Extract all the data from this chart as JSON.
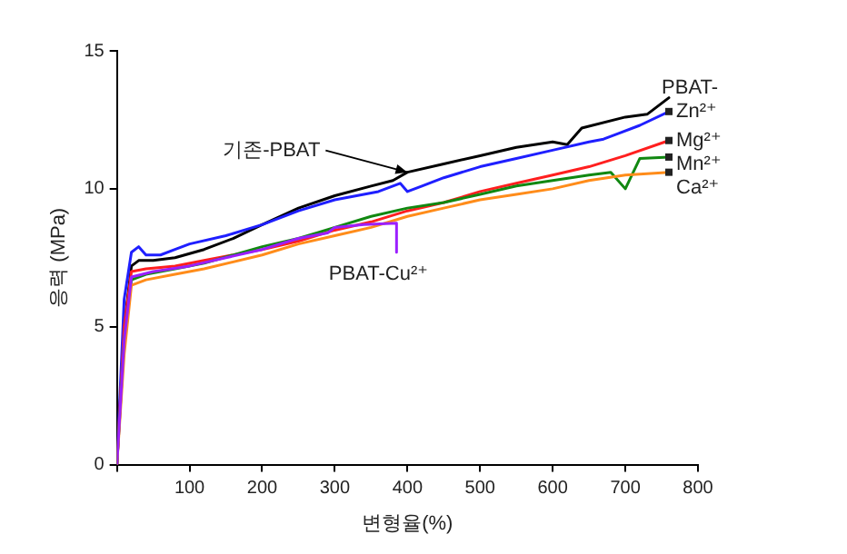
{
  "chart_data": {
    "type": "line",
    "xlabel": "변형율(%)",
    "ylabel": "응력 (MPa)",
    "xlim": [
      0,
      800
    ],
    "xticks": [
      {
        "value": 0,
        "label": null
      },
      100,
      200,
      300,
      400,
      500,
      600,
      700,
      800
    ],
    "ylim": [
      0,
      15
    ],
    "yticks": [
      0,
      5,
      10,
      15
    ],
    "grid": false,
    "legend": false,
    "marker": "none",
    "line_style": "solid",
    "annotations": [
      "PBAT-",
      {
        "text": "기존-PBAT",
        "x": 400,
        "y": 10.6
      },
      {
        "text": "PBAT-Cu²⁺",
        "x": 385,
        "y": 7.7
      }
    ],
    "series": [
      {
        "color": "#000000",
        "x": [
          0,
          10,
          20,
          30,
          50,
          80,
          120,
          160,
          200,
          250,
          300,
          350,
          380,
          400,
          450,
          500,
          550,
          600,
          620,
          640,
          700,
          730,
          760
        ],
        "values": [
          0,
          5,
          7.2,
          7.4,
          7.4,
          7.5,
          7.8,
          8.2,
          8.7,
          9.3,
          9.75,
          10.1,
          10.3,
          10.6,
          10.9,
          11.2,
          11.5,
          11.7,
          11.6,
          12.2,
          12.6,
          12.7,
          13.3
        ]
      },
      {
        "name": "Zn²⁺",
        "color": "#1f1fff",
        "x": [
          0,
          10,
          20,
          30,
          40,
          60,
          80,
          100,
          150,
          200,
          250,
          300,
          360,
          390,
          400,
          420,
          450,
          500,
          550,
          600,
          650,
          670,
          690,
          720,
          760
        ],
        "values": [
          0,
          6,
          7.7,
          7.9,
          7.6,
          7.6,
          7.8,
          8.0,
          8.3,
          8.7,
          9.2,
          9.6,
          9.9,
          10.2,
          9.9,
          10.1,
          10.4,
          10.8,
          11.1,
          11.4,
          11.7,
          11.8,
          12.0,
          12.3,
          12.8
        ]
      },
      {
        "name": "Mg²⁺",
        "color": "#ff1f1f",
        "x": [
          0,
          10,
          20,
          40,
          80,
          120,
          200,
          250,
          300,
          350,
          400,
          450,
          500,
          550,
          600,
          650,
          700,
          760
        ],
        "values": [
          0,
          5,
          7.0,
          7.1,
          7.2,
          7.4,
          7.8,
          8.1,
          8.5,
          8.8,
          9.2,
          9.5,
          9.9,
          10.2,
          10.5,
          10.8,
          11.2,
          11.75
        ]
      },
      {
        "name": "Mn²⁺",
        "color": "#118811",
        "x": [
          0,
          10,
          20,
          40,
          80,
          120,
          200,
          250,
          300,
          350,
          400,
          450,
          500,
          550,
          600,
          650,
          680,
          700,
          720,
          760
        ],
        "values": [
          0,
          4.5,
          6.7,
          6.9,
          7.1,
          7.3,
          7.9,
          8.2,
          8.6,
          9.0,
          9.3,
          9.5,
          9.8,
          10.1,
          10.3,
          10.5,
          10.6,
          10.0,
          11.1,
          11.15
        ]
      },
      {
        "name": "Ca²⁺",
        "color": "#ff8c1a",
        "x": [
          0,
          10,
          20,
          40,
          80,
          120,
          200,
          250,
          300,
          350,
          400,
          450,
          500,
          550,
          600,
          650,
          700,
          760
        ],
        "values": [
          0,
          4,
          6.5,
          6.7,
          6.9,
          7.1,
          7.6,
          8.0,
          8.3,
          8.6,
          9.0,
          9.3,
          9.6,
          9.8,
          10.0,
          10.3,
          10.5,
          10.6
        ]
      },
      {
        "color": "#9b1fff",
        "x": [
          0,
          10,
          20,
          50,
          100,
          150,
          200,
          250,
          290,
          300,
          340,
          385,
          385
        ],
        "values": [
          0,
          4.5,
          6.8,
          7.0,
          7.2,
          7.5,
          7.8,
          8.2,
          8.4,
          8.6,
          8.7,
          8.75,
          7.7
        ]
      }
    ]
  }
}
